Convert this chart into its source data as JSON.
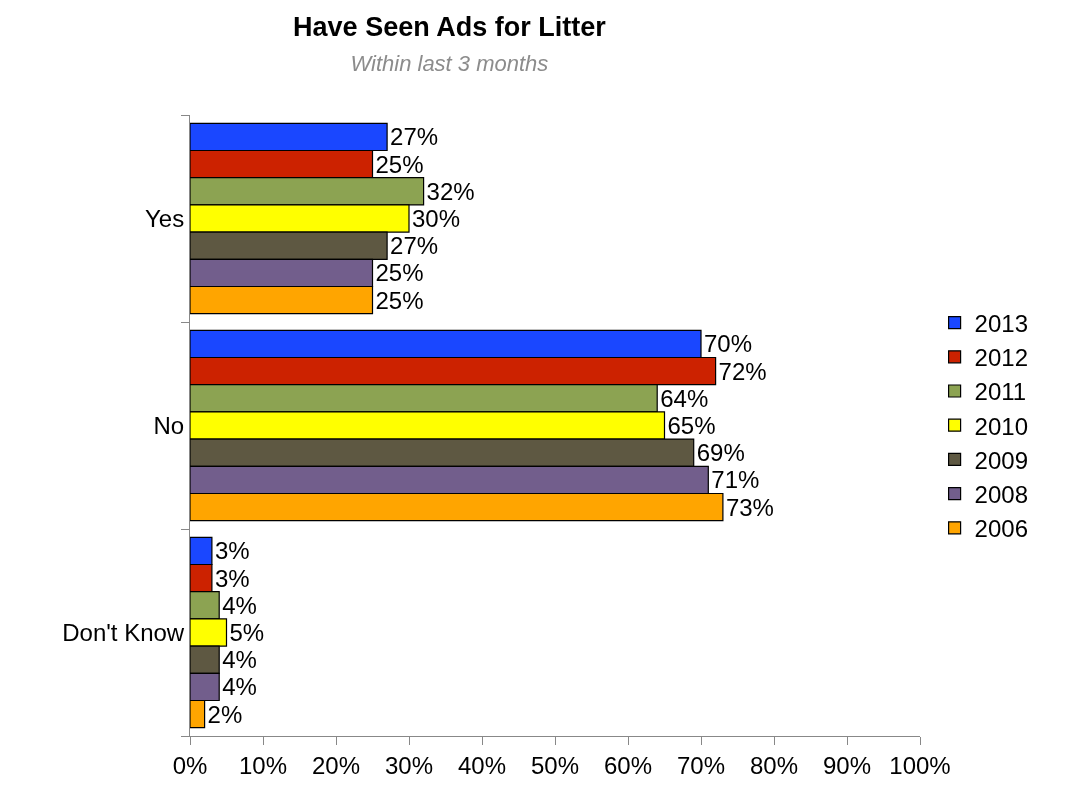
{
  "chart_data": {
    "type": "bar",
    "orientation": "horizontal",
    "title": "Have Seen Ads for Litter",
    "subtitle": "Within last 3 months",
    "categories": [
      "Yes",
      "No",
      "Don't Know"
    ],
    "series": [
      {
        "name": "2013",
        "color": "#1a47ff",
        "values": [
          27,
          70,
          3
        ],
        "value_labels": [
          "27%",
          "70%",
          "3%"
        ]
      },
      {
        "name": "2012",
        "color": "#cc2200",
        "values": [
          25,
          72,
          3
        ],
        "value_labels": [
          "25%",
          "72%",
          "3%"
        ]
      },
      {
        "name": "2011",
        "color": "#8ca352",
        "values": [
          32,
          64,
          4
        ],
        "value_labels": [
          "32%",
          "64%",
          "4%"
        ]
      },
      {
        "name": "2010",
        "color": "#ffff00",
        "values": [
          30,
          65,
          5
        ],
        "value_labels": [
          "30%",
          "65%",
          "5%"
        ]
      },
      {
        "name": "2009",
        "color": "#5e5842",
        "values": [
          27,
          69,
          4
        ],
        "value_labels": [
          "27%",
          "69%",
          "4%"
        ]
      },
      {
        "name": "2008",
        "color": "#725e8c",
        "values": [
          25,
          71,
          4
        ],
        "value_labels": [
          "25%",
          "71%",
          "4%"
        ]
      },
      {
        "name": "2006",
        "color": "#ffa500",
        "values": [
          25,
          73,
          2
        ],
        "value_labels": [
          "25%",
          "73%",
          "2%"
        ]
      }
    ],
    "xlim": [
      0,
      100
    ],
    "xticks": [
      {
        "value": 0,
        "label": "0%"
      },
      {
        "value": 10,
        "label": "10%"
      },
      {
        "value": 20,
        "label": "20%"
      },
      {
        "value": 30,
        "label": "30%"
      },
      {
        "value": 40,
        "label": "40%"
      },
      {
        "value": 50,
        "label": "50%"
      },
      {
        "value": 60,
        "label": "60%"
      },
      {
        "value": 70,
        "label": "70%"
      },
      {
        "value": 80,
        "label": "80%"
      },
      {
        "value": 90,
        "label": "90%"
      },
      {
        "value": 100,
        "label": "100%"
      }
    ],
    "grid": false,
    "legend": "right"
  }
}
